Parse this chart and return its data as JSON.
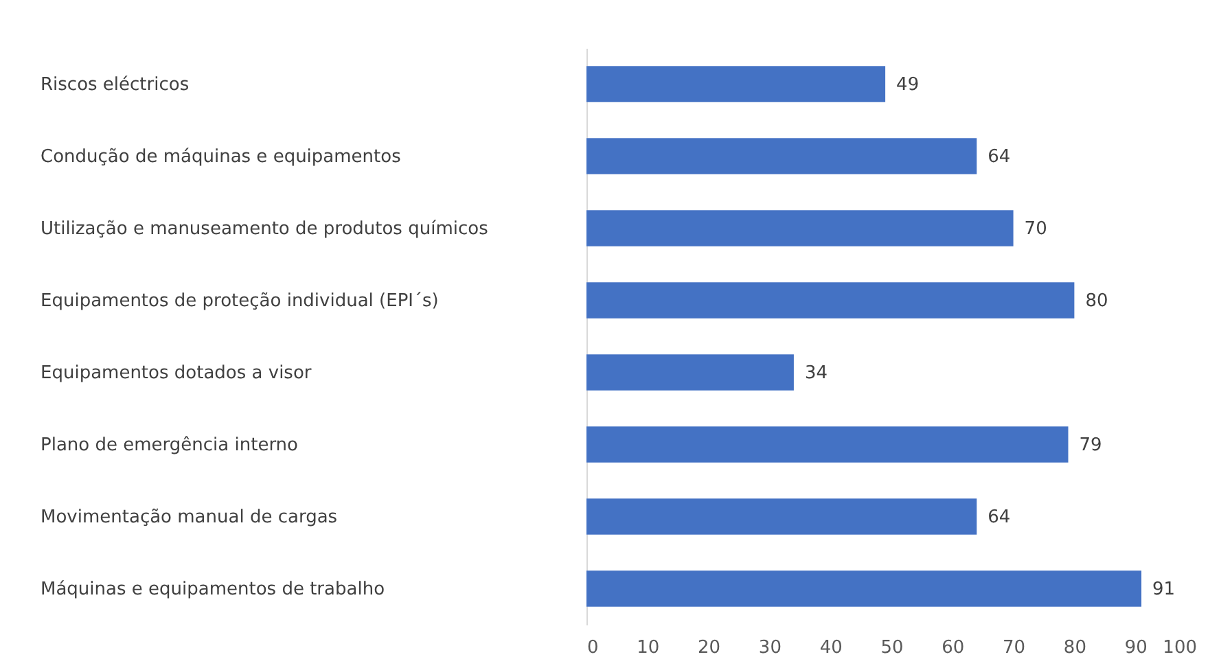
{
  "chart_data": {
    "type": "bar",
    "orientation": "horizontal",
    "categories": [
      "Riscos eléctricos",
      "Condução de máquinas e equipamentos",
      "Utilização e manuseamento de produtos químicos",
      "Equipamentos de proteção individual (EPI´s)",
      "Equipamentos dotados a visor",
      "Plano de emergência interno",
      "Movimentação manual de cargas",
      "Máquinas e equipamentos de trabalho"
    ],
    "values": [
      49,
      64,
      70,
      80,
      34,
      79,
      64,
      91
    ],
    "color": "#4472c4",
    "xlim": [
      0,
      100
    ],
    "xticks": [
      0,
      10,
      20,
      30,
      40,
      50,
      60,
      70,
      80,
      90,
      100
    ],
    "data_labels": true,
    "grid": false
  }
}
